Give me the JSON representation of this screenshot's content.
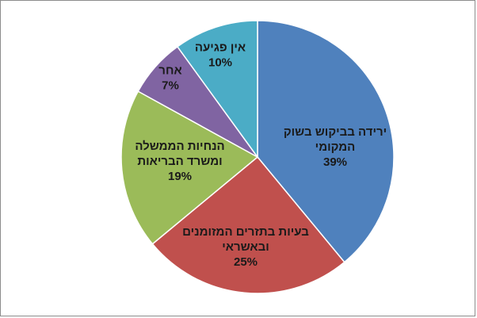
{
  "chart_data": {
    "type": "pie",
    "title": "",
    "start_angle_deg": 0,
    "direction": "clockwise",
    "slices": [
      {
        "label_lines": [
          "ירידה בביקוש בשוק",
          "המקומי"
        ],
        "value": 39,
        "value_label": "39%",
        "color": "#4f81bd"
      },
      {
        "label_lines": [
          "בעיות בתזרים המזומנים",
          "ובאשראי"
        ],
        "value": 25,
        "value_label": "25%",
        "color": "#c0504d"
      },
      {
        "label_lines": [
          "הנחיות הממשלה",
          "ומשרד הבריאות"
        ],
        "value": 19,
        "value_label": "19%",
        "color": "#9bbb59"
      },
      {
        "label_lines": [
          "אחר"
        ],
        "value": 7,
        "value_label": "7%",
        "color": "#8064a2"
      },
      {
        "label_lines": [
          "אין פגיעה"
        ],
        "value": 10,
        "value_label": "10%",
        "color": "#4bacc6"
      }
    ]
  }
}
